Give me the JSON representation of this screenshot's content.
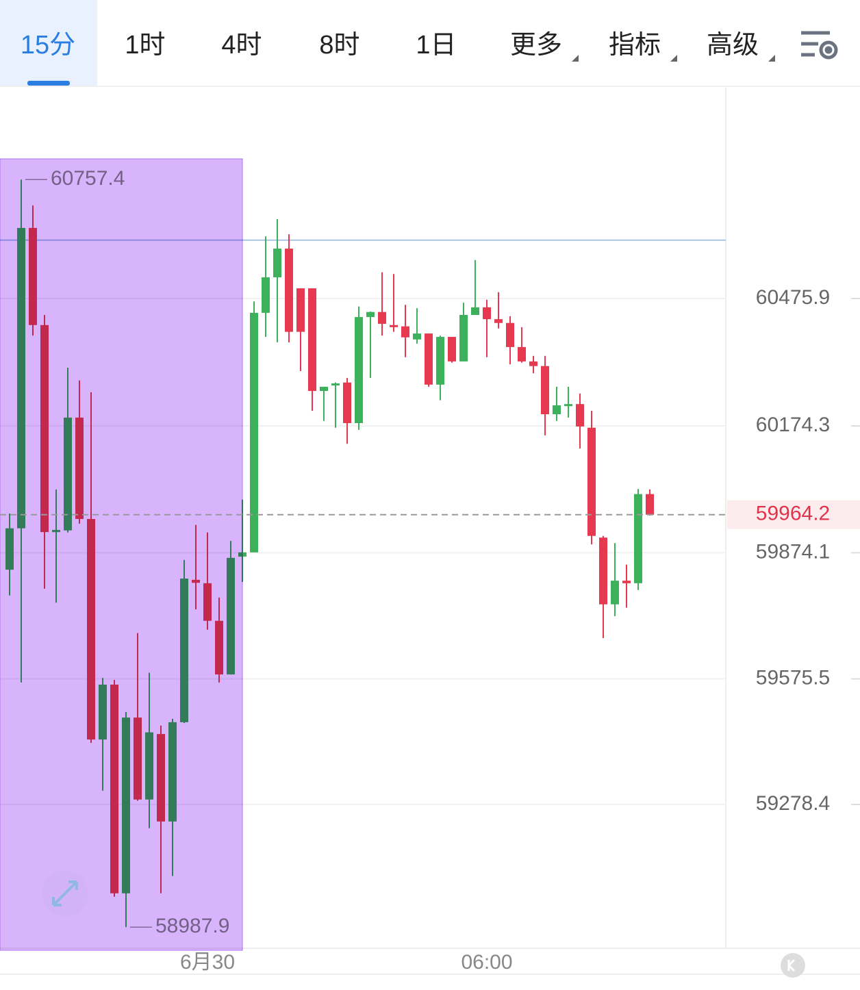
{
  "toolbar": {
    "tabs": [
      "15分",
      "1时",
      "4时",
      "8时",
      "1日",
      "更多",
      "指标",
      "高级"
    ],
    "active": 0,
    "dropdown": [
      5,
      6,
      7
    ]
  },
  "chart_data": {
    "type": "candlestick",
    "categories": [
      null,
      null,
      null,
      null,
      null,
      null,
      null,
      null,
      null,
      null,
      null,
      null,
      null,
      null,
      null,
      null,
      null,
      "6月30",
      null,
      null,
      null,
      null,
      null,
      null,
      null,
      null,
      null,
      null,
      null,
      null,
      null,
      null,
      null,
      null,
      null,
      null,
      null,
      null,
      null,
      null,
      null,
      "06:00",
      null,
      null,
      null,
      null,
      null,
      null,
      null,
      null,
      null,
      null,
      null,
      null,
      null,
      null
    ],
    "open": [
      59834,
      59932,
      60643,
      60413,
      59923,
      59927,
      60194,
      59954,
      59432,
      59562,
      59068,
      59484,
      59290,
      59445,
      59238,
      59473,
      59810,
      59802,
      59713,
      59586,
      59865,
      59875,
      60442,
      60526,
      60594,
      60500,
      60500,
      60257,
      60270,
      60277,
      60181,
      60432,
      60444,
      60413,
      60410,
      60379,
      60393,
      60272,
      60385,
      60327,
      60437,
      60455,
      60427,
      60418,
      60361,
      60327,
      60316,
      60202,
      60222,
      60226,
      60170,
      59910,
      59752,
      59808,
      59802,
      60013
    ],
    "high": [
      59967,
      60757.4,
      60696,
      60437,
      60024,
      60312,
      60282,
      60254,
      59578,
      59573,
      59497,
      59684,
      59590,
      59465,
      59481,
      59857,
      59940,
      59922,
      59768,
      59902,
      60000,
      60469,
      60623,
      60664,
      60628,
      60500,
      60500,
      60267,
      60277,
      60288,
      60457,
      60445,
      60538,
      60534,
      60461,
      60453,
      60393,
      60388,
      60385,
      60466,
      60567,
      60473,
      60491,
      60434,
      60408,
      60340,
      60340,
      60267,
      60267,
      60251,
      60210,
      59914,
      59897,
      59846,
      60025,
      60024
    ],
    "low": [
      59773,
      59567,
      60388,
      59789,
      59756,
      59922,
      59943,
      59424,
      59311,
      59060,
      58987.9,
      59287,
      59222,
      59068,
      59109,
      59471,
      59740,
      59692,
      59567,
      59586,
      59805,
      59875,
      60385,
      60372,
      60372,
      60304,
      60210,
      60186,
      60170,
      60132,
      60165,
      60288,
      60388,
      60397,
      60337,
      60369,
      60267,
      60235,
      60324,
      60327,
      60437,
      60337,
      60405,
      60320,
      60324,
      60299,
      60152,
      60186,
      60194,
      60121,
      59894,
      59672,
      59724,
      59744,
      59786,
      59962
    ],
    "close": [
      59932,
      60643,
      60413,
      59923,
      59928,
      60194,
      59954,
      59432,
      59562,
      59068,
      59484,
      59290,
      59449,
      59238,
      59473,
      59813,
      59803,
      59713,
      59586,
      59862,
      59875,
      60442,
      60526,
      60594,
      60397,
      60397,
      60257,
      60267,
      60275,
      60181,
      60432,
      60444,
      60416,
      60410,
      60384,
      60393,
      60272,
      60385,
      60327,
      60437,
      60455,
      60427,
      60418,
      60361,
      60327,
      60316,
      60202,
      60223,
      60226,
      60173,
      59914,
      59752,
      59808,
      59802,
      60013,
      59964.2
    ],
    "up_color": "#3cb05a",
    "down_color": "#e6394f",
    "ylim": [
      58938,
      60975
    ],
    "yticks": [
      60475.9,
      60174.3,
      59874.1,
      59575.5,
      59278.4
    ],
    "grid": true,
    "high_marker": 60757.4,
    "low_marker": 58987.9,
    "last_price": 59964.2,
    "reference_line": 60614
  }
}
